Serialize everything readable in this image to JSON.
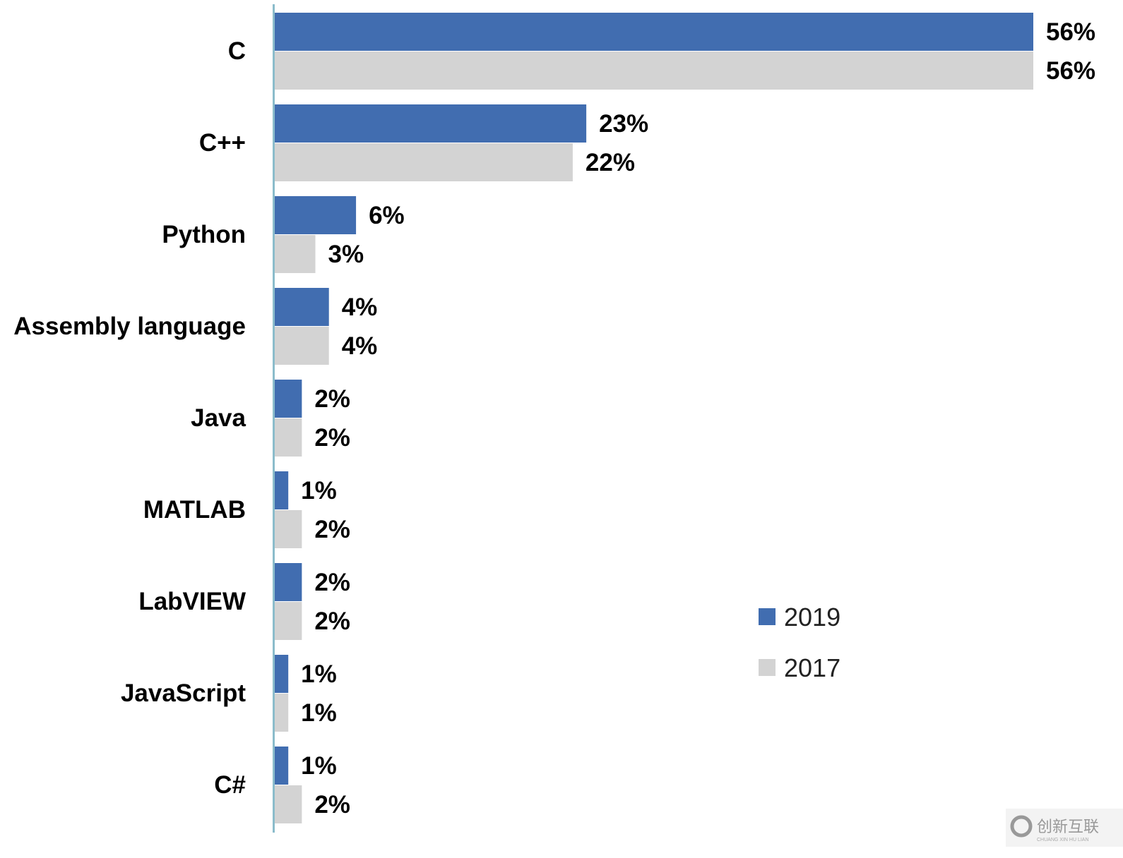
{
  "chart_data": {
    "type": "bar",
    "orientation": "horizontal",
    "categories": [
      "C",
      "C++",
      "Python",
      "Assembly language",
      "Java",
      "MATLAB",
      "LabVIEW",
      "JavaScript",
      "C#"
    ],
    "series": [
      {
        "name": "2019",
        "values": [
          56,
          23,
          6,
          4,
          2,
          1,
          2,
          1,
          1
        ],
        "labels": [
          "56%",
          "23%",
          "6%",
          "4%",
          "2%",
          "1%",
          "2%",
          "1%",
          "1%"
        ],
        "color": "#416db0"
      },
      {
        "name": "2017",
        "values": [
          56,
          22,
          3,
          4,
          2,
          2,
          2,
          1,
          2
        ],
        "labels": [
          "56%",
          "22%",
          "3%",
          "4%",
          "2%",
          "2%",
          "2%",
          "1%",
          "2%"
        ],
        "color": "#d3d3d3"
      }
    ],
    "title": "",
    "xlabel": "",
    "ylabel": "",
    "xlim": [
      0,
      56
    ],
    "grid": false,
    "legend_position": "right"
  },
  "watermark": {
    "text": "创新互联",
    "subtext": "CHUANG XIN HU LIAN"
  }
}
